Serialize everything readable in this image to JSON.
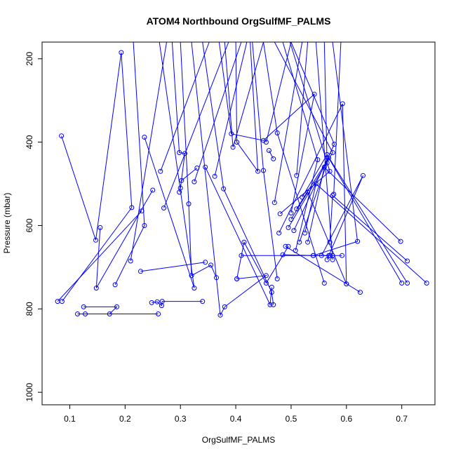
{
  "chart_data": {
    "type": "line",
    "title": "ATOM4 Northbound OrgSulfMF_PALMS",
    "xlabel": "OrgSulfMF_PALMS",
    "ylabel": "Pressure (mbar)",
    "xlim": [
      0.05,
      0.76
    ],
    "ylim": [
      1030,
      160
    ],
    "y_reversed": true,
    "xticks": [
      0.1,
      0.2,
      0.3,
      0.4,
      0.5,
      0.6,
      0.7
    ],
    "xtick_labels": [
      "0.1",
      "0.2",
      "0.3",
      "0.4",
      "0.5",
      "0.6",
      "0.7"
    ],
    "yticks": [
      200,
      400,
      600,
      800,
      1000
    ],
    "ytick_labels": [
      "200",
      "400",
      "600",
      "800",
      "1000"
    ],
    "grid": false,
    "line_color": "#0000ff",
    "marker": "open-circle",
    "series": [
      {
        "values": [
          [
            0.085,
            385
          ],
          [
            0.147,
            635
          ],
          [
            0.193,
            185
          ],
          [
            0.212,
            557
          ],
          [
            0.086,
            782
          ]
        ]
      },
      {
        "values": [
          [
            0.155,
            605
          ],
          [
            0.148,
            750
          ],
          [
            0.25,
            515
          ]
        ]
      },
      {
        "values": [
          [
            0.078,
            782
          ],
          [
            0.23,
            565
          ]
        ]
      },
      {
        "values": [
          [
            0.114,
            812
          ],
          [
            0.26,
            812
          ],
          [
            0.128,
            812
          ]
        ]
      },
      {
        "values": [
          [
            0.125,
            795
          ],
          [
            0.185,
            795
          ],
          [
            0.172,
            812
          ]
        ]
      },
      {
        "values": [
          [
            0.182,
            742
          ],
          [
            0.235,
            600
          ],
          [
            0.215,
            160
          ]
        ]
      },
      {
        "values": [
          [
            0.21,
            685
          ],
          [
            0.275,
            160
          ]
        ]
      },
      {
        "values": [
          [
            0.228,
            710
          ],
          [
            0.345,
            688
          ]
        ]
      },
      {
        "values": [
          [
            0.235,
            388
          ],
          [
            0.325,
            750
          ],
          [
            0.262,
            160
          ]
        ]
      },
      {
        "values": [
          [
            0.248,
            785
          ],
          [
            0.258,
            783
          ],
          [
            0.266,
            792
          ],
          [
            0.267,
            782
          ],
          [
            0.34,
            782
          ]
        ]
      },
      {
        "values": [
          [
            0.264,
            470
          ],
          [
            0.352,
            160
          ]
        ]
      },
      {
        "values": [
          [
            0.27,
            558
          ],
          [
            0.387,
            160
          ]
        ]
      },
      {
        "values": [
          [
            0.285,
            160
          ],
          [
            0.298,
            425
          ],
          [
            0.308,
            427
          ],
          [
            0.3,
            510
          ]
        ]
      },
      {
        "values": [
          [
            0.298,
            520
          ],
          [
            0.302,
            492
          ],
          [
            0.33,
            462
          ]
        ]
      },
      {
        "values": [
          [
            0.3,
            160
          ],
          [
            0.315,
            548
          ],
          [
            0.32,
            720
          ],
          [
            0.355,
            695
          ],
          [
            0.365,
            725
          ]
        ]
      },
      {
        "values": [
          [
            0.32,
            160
          ],
          [
            0.372,
            815
          ],
          [
            0.38,
            795
          ],
          [
            0.455,
            720
          ],
          [
            0.402,
            728
          ]
        ]
      },
      {
        "values": [
          [
            0.325,
            495
          ],
          [
            0.41,
            160
          ]
        ]
      },
      {
        "values": [
          [
            0.34,
            160
          ],
          [
            0.378,
            512
          ],
          [
            0.465,
            760
          ],
          [
            0.468,
            790
          ]
        ]
      },
      {
        "values": [
          [
            0.345,
            460
          ],
          [
            0.462,
            790
          ],
          [
            0.465,
            748
          ]
        ]
      },
      {
        "values": [
          [
            0.362,
            482
          ],
          [
            0.42,
            160
          ]
        ]
      },
      {
        "values": [
          [
            0.37,
            160
          ],
          [
            0.392,
            380
          ],
          [
            0.45,
            396
          ],
          [
            0.542,
            285
          ],
          [
            0.5,
            570
          ]
        ]
      },
      {
        "values": [
          [
            0.38,
            160
          ],
          [
            0.395,
            412
          ],
          [
            0.45,
            160
          ]
        ]
      },
      {
        "values": [
          [
            0.4,
            160
          ],
          [
            0.402,
            400
          ],
          [
            0.44,
            470
          ],
          [
            0.426,
            160
          ]
        ]
      },
      {
        "values": [
          [
            0.402,
            728
          ],
          [
            0.415,
            640
          ],
          [
            0.455,
            738
          ],
          [
            0.495,
            650
          ]
        ]
      },
      {
        "values": [
          [
            0.41,
            672
          ],
          [
            0.57,
            672
          ]
        ]
      },
      {
        "values": [
          [
            0.43,
            160
          ],
          [
            0.45,
            468
          ],
          [
            0.475,
            728
          ]
        ]
      },
      {
        "values": [
          [
            0.45,
            160
          ],
          [
            0.475,
            378
          ],
          [
            0.56,
            738
          ]
        ]
      },
      {
        "values": [
          [
            0.455,
            400
          ],
          [
            0.5,
            160
          ]
        ]
      },
      {
        "values": [
          [
            0.46,
            420
          ],
          [
            0.468,
            440
          ]
        ]
      },
      {
        "values": [
          [
            0.47,
            545
          ],
          [
            0.52,
            160
          ]
        ]
      },
      {
        "values": [
          [
            0.478,
            618
          ],
          [
            0.593,
            308
          ],
          [
            0.6,
            740
          ]
        ]
      },
      {
        "values": [
          [
            0.48,
            572
          ],
          [
            0.57,
            470
          ],
          [
            0.498,
            160
          ]
        ]
      },
      {
        "values": [
          [
            0.485,
            670
          ],
          [
            0.54,
            672
          ],
          [
            0.568,
            672
          ],
          [
            0.575,
            672
          ],
          [
            0.592,
            672
          ]
        ]
      },
      {
        "values": [
          [
            0.49,
            650
          ],
          [
            0.625,
            760
          ]
        ]
      },
      {
        "values": [
          [
            0.495,
            605
          ],
          [
            0.575,
            425
          ],
          [
            0.47,
            160
          ]
        ]
      },
      {
        "values": [
          [
            0.5,
            585
          ],
          [
            0.53,
            520
          ],
          [
            0.6,
            740
          ]
        ]
      },
      {
        "values": [
          [
            0.505,
            612
          ],
          [
            0.578,
            405
          ],
          [
            0.5,
            160
          ]
        ]
      },
      {
        "values": [
          [
            0.508,
            660
          ],
          [
            0.548,
            442
          ],
          [
            0.485,
            160
          ]
        ]
      },
      {
        "values": [
          [
            0.51,
            560
          ],
          [
            0.568,
            438
          ],
          [
            0.7,
            738
          ]
        ]
      },
      {
        "values": [
          [
            0.515,
            640
          ],
          [
            0.565,
            450
          ],
          [
            0.56,
            160
          ]
        ]
      },
      {
        "values": [
          [
            0.52,
            532
          ],
          [
            0.565,
            430
          ],
          [
            0.71,
            738
          ]
        ]
      },
      {
        "values": [
          [
            0.525,
            618
          ],
          [
            0.545,
            500
          ],
          [
            0.745,
            738
          ]
        ]
      },
      {
        "values": [
          [
            0.53,
            640
          ],
          [
            0.56,
            460
          ],
          [
            0.698,
            638
          ]
        ]
      },
      {
        "values": [
          [
            0.54,
            672
          ],
          [
            0.62,
            638
          ],
          [
            0.575,
            160
          ]
        ]
      },
      {
        "values": [
          [
            0.555,
            672
          ],
          [
            0.63,
            480
          ],
          [
            0.565,
            682
          ]
        ]
      },
      {
        "values": [
          [
            0.57,
            640
          ],
          [
            0.575,
            528
          ],
          [
            0.71,
            685
          ]
        ]
      },
      {
        "values": [
          [
            0.575,
            682
          ],
          [
            0.545,
            160
          ]
        ]
      },
      {
        "values": [
          [
            0.577,
            525
          ],
          [
            0.59,
            160
          ]
        ]
      },
      {
        "values": [
          [
            0.51,
            480
          ],
          [
            0.53,
            160
          ]
        ]
      }
    ]
  }
}
